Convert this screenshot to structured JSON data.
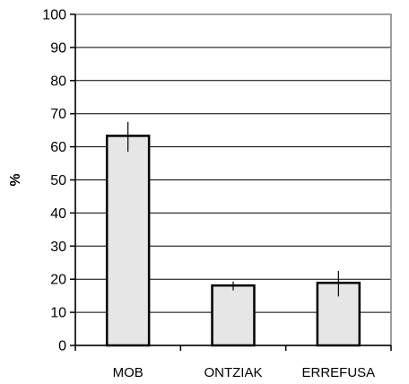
{
  "chart_data": {
    "type": "bar",
    "categories": [
      "MOB",
      "ONTZIAK",
      "ERREFUSA"
    ],
    "values": [
      63.3,
      18.1,
      18.9
    ],
    "error_low": [
      58.5,
      16.6,
      14.8
    ],
    "error_high": [
      67.5,
      19.3,
      22.5
    ],
    "title": "",
    "xlabel": "",
    "ylabel": "%",
    "ylim": [
      0,
      100
    ],
    "yticks": [
      0,
      10,
      20,
      30,
      40,
      50,
      60,
      70,
      80,
      90,
      100
    ],
    "grid": true,
    "legend": "none",
    "bar_fill": "#e6e6e6",
    "bar_stroke": "#000000",
    "grid_color": "#000000"
  }
}
